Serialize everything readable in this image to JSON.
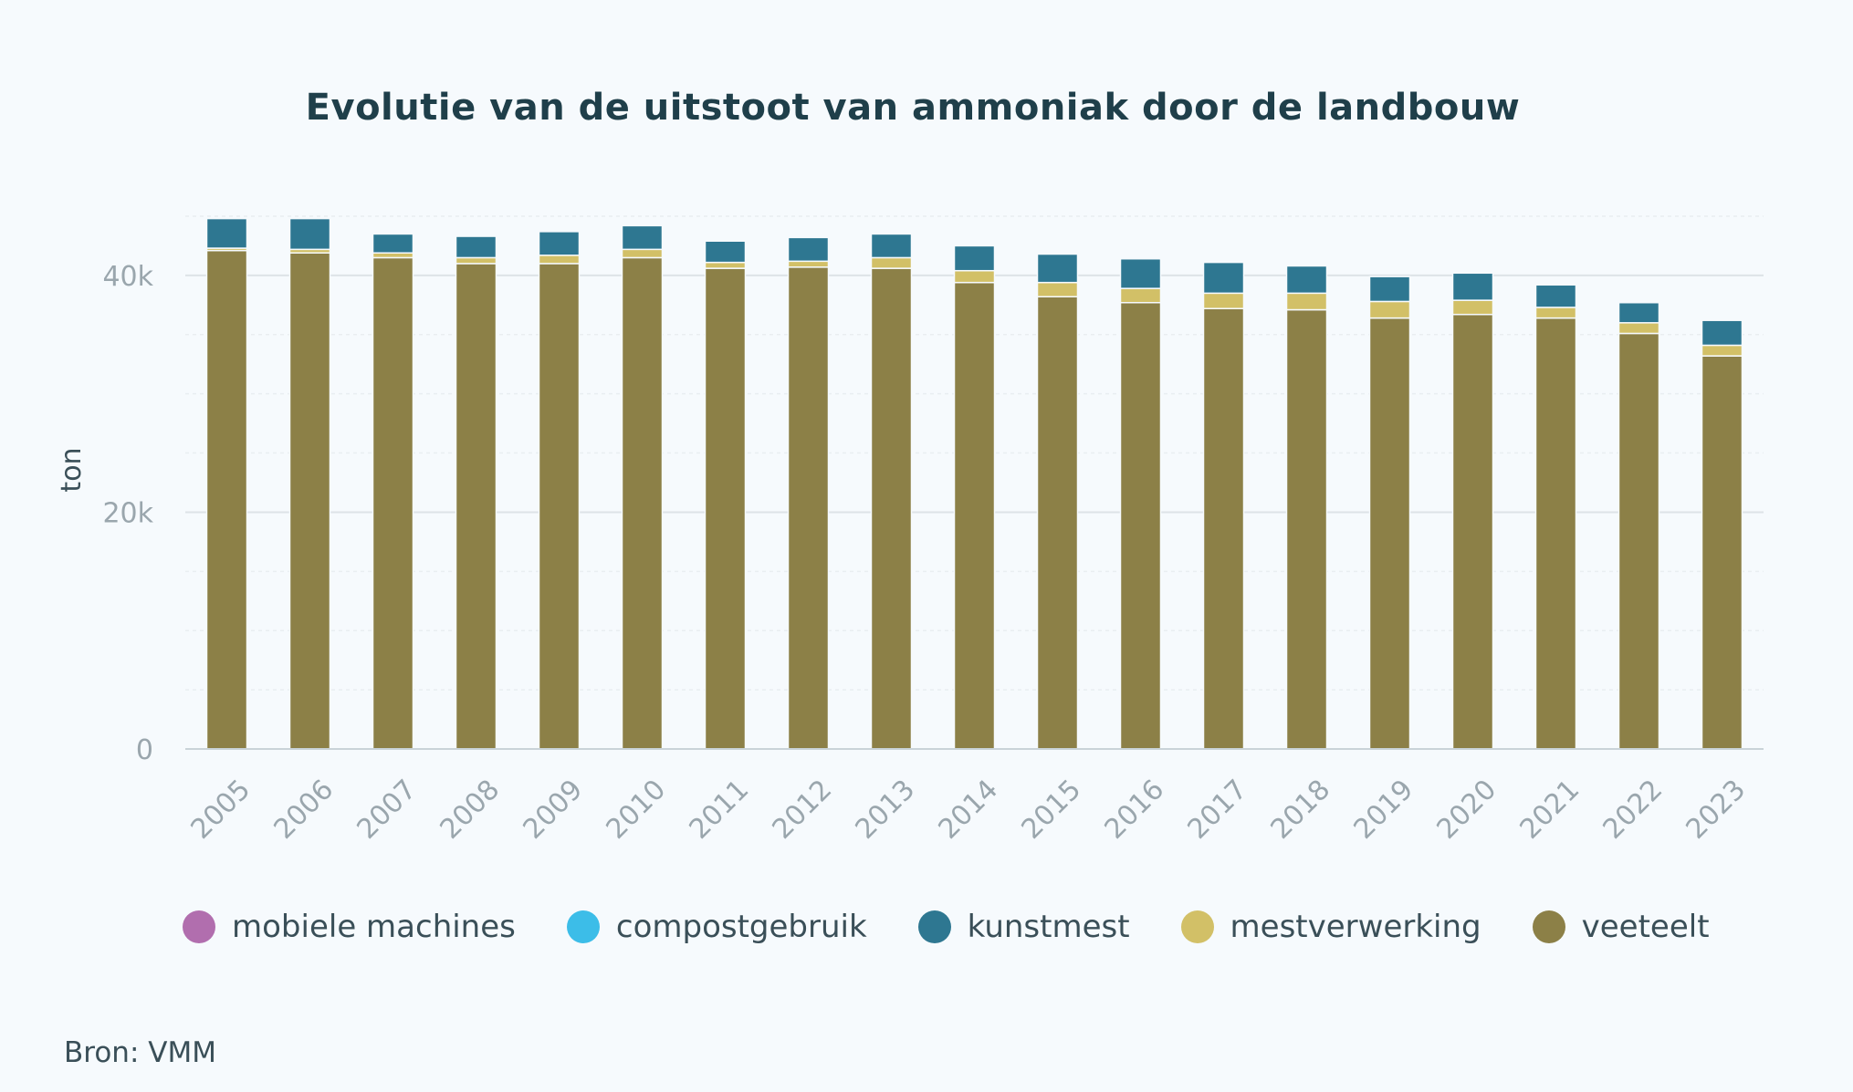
{
  "chart_data": {
    "type": "bar",
    "stacked": true,
    "title": "Evolutie van de uitstoot van ammoniak door de landbouw",
    "xlabel": "",
    "ylabel": "ton",
    "ylim": [
      0,
      45000
    ],
    "yticks": [
      0,
      20000,
      40000
    ],
    "ytick_labels": [
      "0",
      "20k",
      "40k"
    ],
    "grid": true,
    "legend_position": "bottom",
    "categories": [
      "2005",
      "2006",
      "2007",
      "2008",
      "2009",
      "2010",
      "2011",
      "2012",
      "2013",
      "2014",
      "2015",
      "2016",
      "2017",
      "2018",
      "2019",
      "2020",
      "2021",
      "2022",
      "2023"
    ],
    "series": [
      {
        "name": "veeteelt",
        "color": "#8c8047",
        "values": [
          42100,
          41900,
          41500,
          41000,
          41000,
          41500,
          40600,
          40700,
          40600,
          39400,
          38200,
          37700,
          37200,
          37100,
          36400,
          36700,
          36400,
          35100,
          33200
        ]
      },
      {
        "name": "mestverwerking",
        "color": "#d2c067",
        "values": [
          200,
          300,
          400,
          500,
          700,
          700,
          500,
          500,
          900,
          1000,
          1200,
          1200,
          1300,
          1400,
          1400,
          1200,
          900,
          900,
          900
        ]
      },
      {
        "name": "compostgebruik",
        "color": "#3cbde8",
        "values": [
          0,
          0,
          0,
          0,
          0,
          0,
          0,
          0,
          0,
          0,
          0,
          0,
          0,
          0,
          0,
          0,
          0,
          0,
          0
        ]
      },
      {
        "name": "kunstmest",
        "color": "#2e7791",
        "values": [
          2500,
          2600,
          1600,
          1800,
          2000,
          2000,
          1800,
          2000,
          2000,
          2100,
          2400,
          2500,
          2600,
          2300,
          2100,
          2300,
          1900,
          1700,
          2100
        ]
      },
      {
        "name": "mobiele machines",
        "color": "#b16eae",
        "values": [
          0,
          0,
          0,
          0,
          0,
          0,
          0,
          0,
          0,
          0,
          0,
          0,
          0,
          0,
          0,
          0,
          0,
          0,
          0
        ]
      }
    ],
    "legend_order": [
      "mobiele machines",
      "compostgebruik",
      "kunstmest",
      "mestverwerking",
      "veeteelt"
    ]
  },
  "source": "Bron: VMM"
}
